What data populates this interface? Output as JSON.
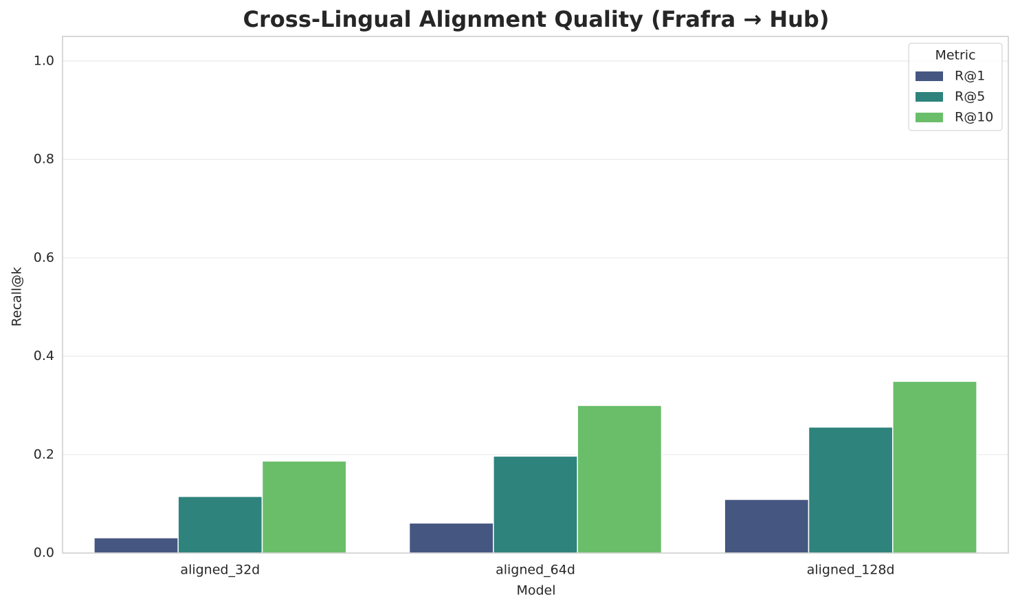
{
  "chart_data": {
    "type": "bar",
    "title": "Cross-Lingual Alignment Quality (Frafra → Hub)",
    "x_label": "Model",
    "y_label": "Recall@k",
    "categories": [
      "aligned_32d",
      "aligned_64d",
      "aligned_128d"
    ],
    "series": [
      {
        "name": "R@1",
        "color": "#455681",
        "values": [
          0.031,
          0.061,
          0.109
        ]
      },
      {
        "name": "R@5",
        "color": "#2e837c",
        "values": [
          0.115,
          0.197,
          0.256
        ]
      },
      {
        "name": "R@10",
        "color": "#6abe6a",
        "values": [
          0.187,
          0.3,
          0.349
        ]
      }
    ],
    "ylim": [
      0,
      1.05
    ],
    "yticks": [
      {
        "value": 0,
        "label": "0.0"
      },
      0.2,
      0.4,
      0.6,
      0.8,
      {
        "value": 1,
        "label": "1.0"
      }
    ],
    "grid": true,
    "legend_title": "Metric",
    "legend_position": "upper right"
  }
}
